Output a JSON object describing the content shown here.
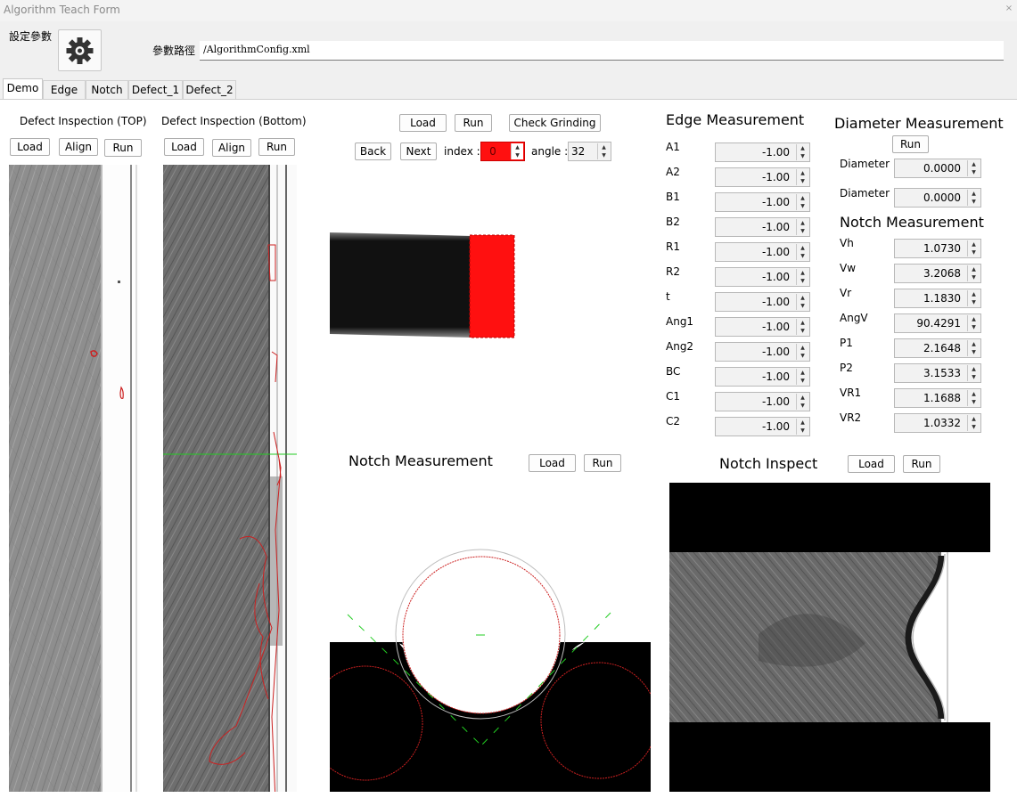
{
  "window": {
    "title": "Algorithm Teach Form",
    "close_glyph": "×"
  },
  "top": {
    "settings_label": "設定參數",
    "settings_icon": "gear-icon",
    "path_label": "參數路徑",
    "path_value": "/AlgorithmConfig.xml"
  },
  "tabs": [
    "Demo",
    "Edge",
    "Notch",
    "Defect_1",
    "Defect_2"
  ],
  "defect_top": {
    "title": "Defect Inspection (TOP)",
    "load": "Load",
    "align": "Align",
    "run": "Run"
  },
  "defect_bottom": {
    "title": "Defect Inspection (Bottom)",
    "load": "Load",
    "align": "Align",
    "run": "Run"
  },
  "grinding": {
    "load": "Load",
    "run": "Run",
    "check": "Check Grinding",
    "back": "Back",
    "next": "Next",
    "index_label": "index :",
    "index_value": "0",
    "angle_label": "angle :",
    "angle_value": "32"
  },
  "edge": {
    "title": "Edge Measurement",
    "rows": [
      {
        "label": "A1",
        "value": "-1.00"
      },
      {
        "label": "A2",
        "value": "-1.00"
      },
      {
        "label": "B1",
        "value": "-1.00"
      },
      {
        "label": "B2",
        "value": "-1.00"
      },
      {
        "label": "R1",
        "value": "-1.00"
      },
      {
        "label": "R2",
        "value": "-1.00"
      },
      {
        "label": "t",
        "value": "-1.00"
      },
      {
        "label": "Ang1",
        "value": "-1.00"
      },
      {
        "label": "Ang2",
        "value": "-1.00"
      },
      {
        "label": "BC",
        "value": "-1.00"
      },
      {
        "label": "C1",
        "value": "-1.00"
      },
      {
        "label": "C2",
        "value": "-1.00"
      }
    ]
  },
  "diameter": {
    "title": "Diameter Measurement",
    "run": "Run",
    "rows": [
      {
        "label": "Diameter",
        "value": "0.0000"
      },
      {
        "label": "Diameter",
        "value": "0.0000"
      }
    ]
  },
  "notch_measure": {
    "title": "Notch Measurement",
    "rows": [
      {
        "label": "Vh",
        "value": "1.0730"
      },
      {
        "label": "Vw",
        "value": "3.2068"
      },
      {
        "label": "Vr",
        "value": "1.1830"
      },
      {
        "label": "AngV",
        "value": "90.4291"
      },
      {
        "label": "P1",
        "value": "2.1648"
      },
      {
        "label": "P2",
        "value": "3.1533"
      },
      {
        "label": "VR1",
        "value": "1.1688"
      },
      {
        "label": "VR2",
        "value": "1.0332"
      }
    ]
  },
  "notch_panel": {
    "title": "Notch Measurement",
    "load": "Load",
    "run": "Run"
  },
  "notch_inspect": {
    "title": "Notch Inspect",
    "load": "Load",
    "run": "Run"
  },
  "colors": {
    "accent_red": "#ff1010",
    "overlay_green": "#22cc22",
    "defect_red": "#cc2020"
  }
}
